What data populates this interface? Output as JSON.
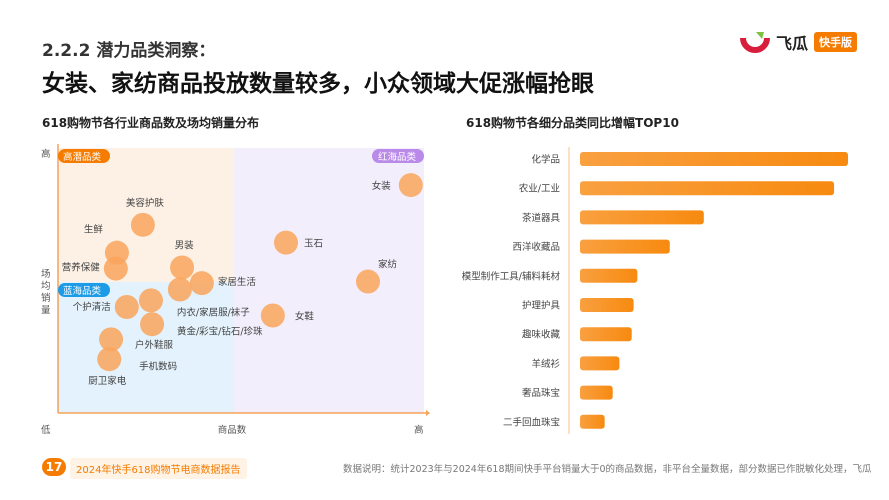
{
  "header": {
    "section": "2.2.2 潜力品类洞察：",
    "headline": "女装、家纺商品投放数量较多，小众领域大促涨幅抢眼"
  },
  "logo": {
    "brand": "飞瓜",
    "tag": "快手版"
  },
  "footer": {
    "page": "17",
    "report": "2024年快手618购物节电商数据报告",
    "note": "数据说明：统计2023年与2024年618期间快手平台销量大于0的商品数据，非平台全量数据，部分数据已作脱敏化处理，飞瓜"
  },
  "colors": {
    "accent": "#f57c00",
    "bubble": "#f9a55a",
    "high_potential": "#fdf1e6",
    "blue_ocean": "#e3f2fc",
    "red_ocean": "#f3eefc",
    "blue_tag": "#1e9be6",
    "purple_tag": "#b98ae8"
  },
  "chart_data": [
    {
      "type": "scatter",
      "title": "618购物节各行业商品数及场均销量分布",
      "xlabel": "商品数",
      "ylabel": "场均销量",
      "x_ticks": {
        "low": "低",
        "high": "高"
      },
      "y_ticks": {
        "low": "低",
        "high": "高"
      },
      "xlim": [
        0,
        100
      ],
      "ylim": [
        0,
        100
      ],
      "quadrants": {
        "top_left": "高潜品类",
        "bottom_left": "蓝海品类",
        "top_right": "红海品类"
      },
      "points": [
        {
          "label": "女装",
          "x": 96.4,
          "y": 86
        },
        {
          "label": "美容护肤",
          "x": 23.2,
          "y": 71
        },
        {
          "label": "生鲜",
          "x": 16.1,
          "y": 60.5
        },
        {
          "label": "营养保健",
          "x": 15.8,
          "y": 54.5
        },
        {
          "label": "男装",
          "x": 33.9,
          "y": 54.9
        },
        {
          "label": "家居生活",
          "x": 39.3,
          "y": 49
        },
        {
          "label": "内衣/家居服/袜子",
          "x": 33.3,
          "y": 46.6
        },
        {
          "label": "个护清洁",
          "x": 18.8,
          "y": 40
        },
        {
          "label": "黄金/彩宝/钻石/珍珠",
          "x": 25.4,
          "y": 42.5
        },
        {
          "label": "户外鞋服",
          "x": 25.7,
          "y": 33.5
        },
        {
          "label": "手机数码",
          "x": 14.5,
          "y": 27.8
        },
        {
          "label": "厨卫家电",
          "x": 14,
          "y": 20.3
        },
        {
          "label": "玉石",
          "x": 62.3,
          "y": 64.3
        },
        {
          "label": "家纺",
          "x": 84.7,
          "y": 49.6
        },
        {
          "label": "女鞋",
          "x": 58.7,
          "y": 36.8
        }
      ]
    },
    {
      "type": "bar",
      "orientation": "horizontal",
      "title": "618购物节各细分品类同比增幅TOP10",
      "categories": [
        "化学品",
        "农业/工业",
        "茶道器具",
        "西洋收藏品",
        "模型制作工具/辅料耗材",
        "护理护具",
        "趣味收藏",
        "羊绒衫",
        "奢品珠宝",
        "二手回血珠宝"
      ],
      "values": [
        100,
        94.8,
        46.2,
        33.5,
        21.4,
        20,
        19.3,
        14.7,
        12.2,
        9.2
      ]
    }
  ]
}
